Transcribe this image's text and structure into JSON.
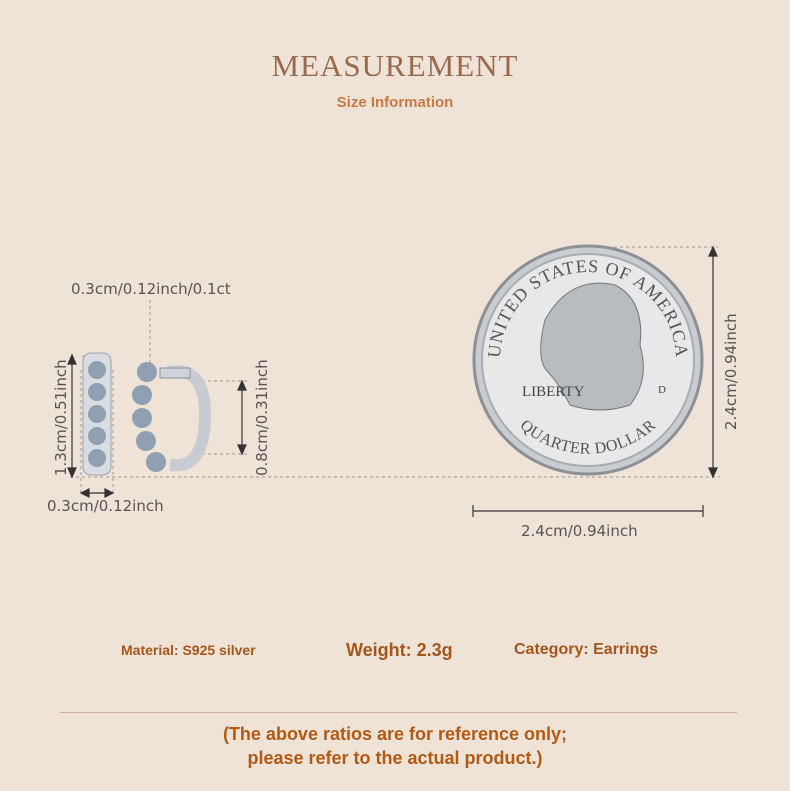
{
  "header": {
    "title": "MEASUREMENT",
    "subtitle": "Size Information"
  },
  "earring": {
    "stone_size": "0.3cm/0.12inch/0.1ct",
    "height": "1.3cm/0.51inch",
    "width": "0.3cm/0.12inch",
    "inner_diameter": "0.8cm/0.31inch"
  },
  "coin": {
    "height": "2.4cm/0.94inch",
    "width": "2.4cm/0.94inch",
    "top_text": "UNITED STATES OF AMERICA",
    "bottom_text": "QUARTER DOLLAR",
    "liberty": "LIBERTY",
    "mint": "D"
  },
  "specs": {
    "material": "Material: S925 silver",
    "weight": "Weight: 2.3g",
    "category": "Category: Earrings"
  },
  "note": {
    "line1": "(The above ratios are for reference only;",
    "line2": "please refer to the actual product.)"
  },
  "colors": {
    "background": "#efe3d8",
    "title": "#9a6a4d",
    "accent": "#c97a42",
    "text": "#a4561c"
  }
}
